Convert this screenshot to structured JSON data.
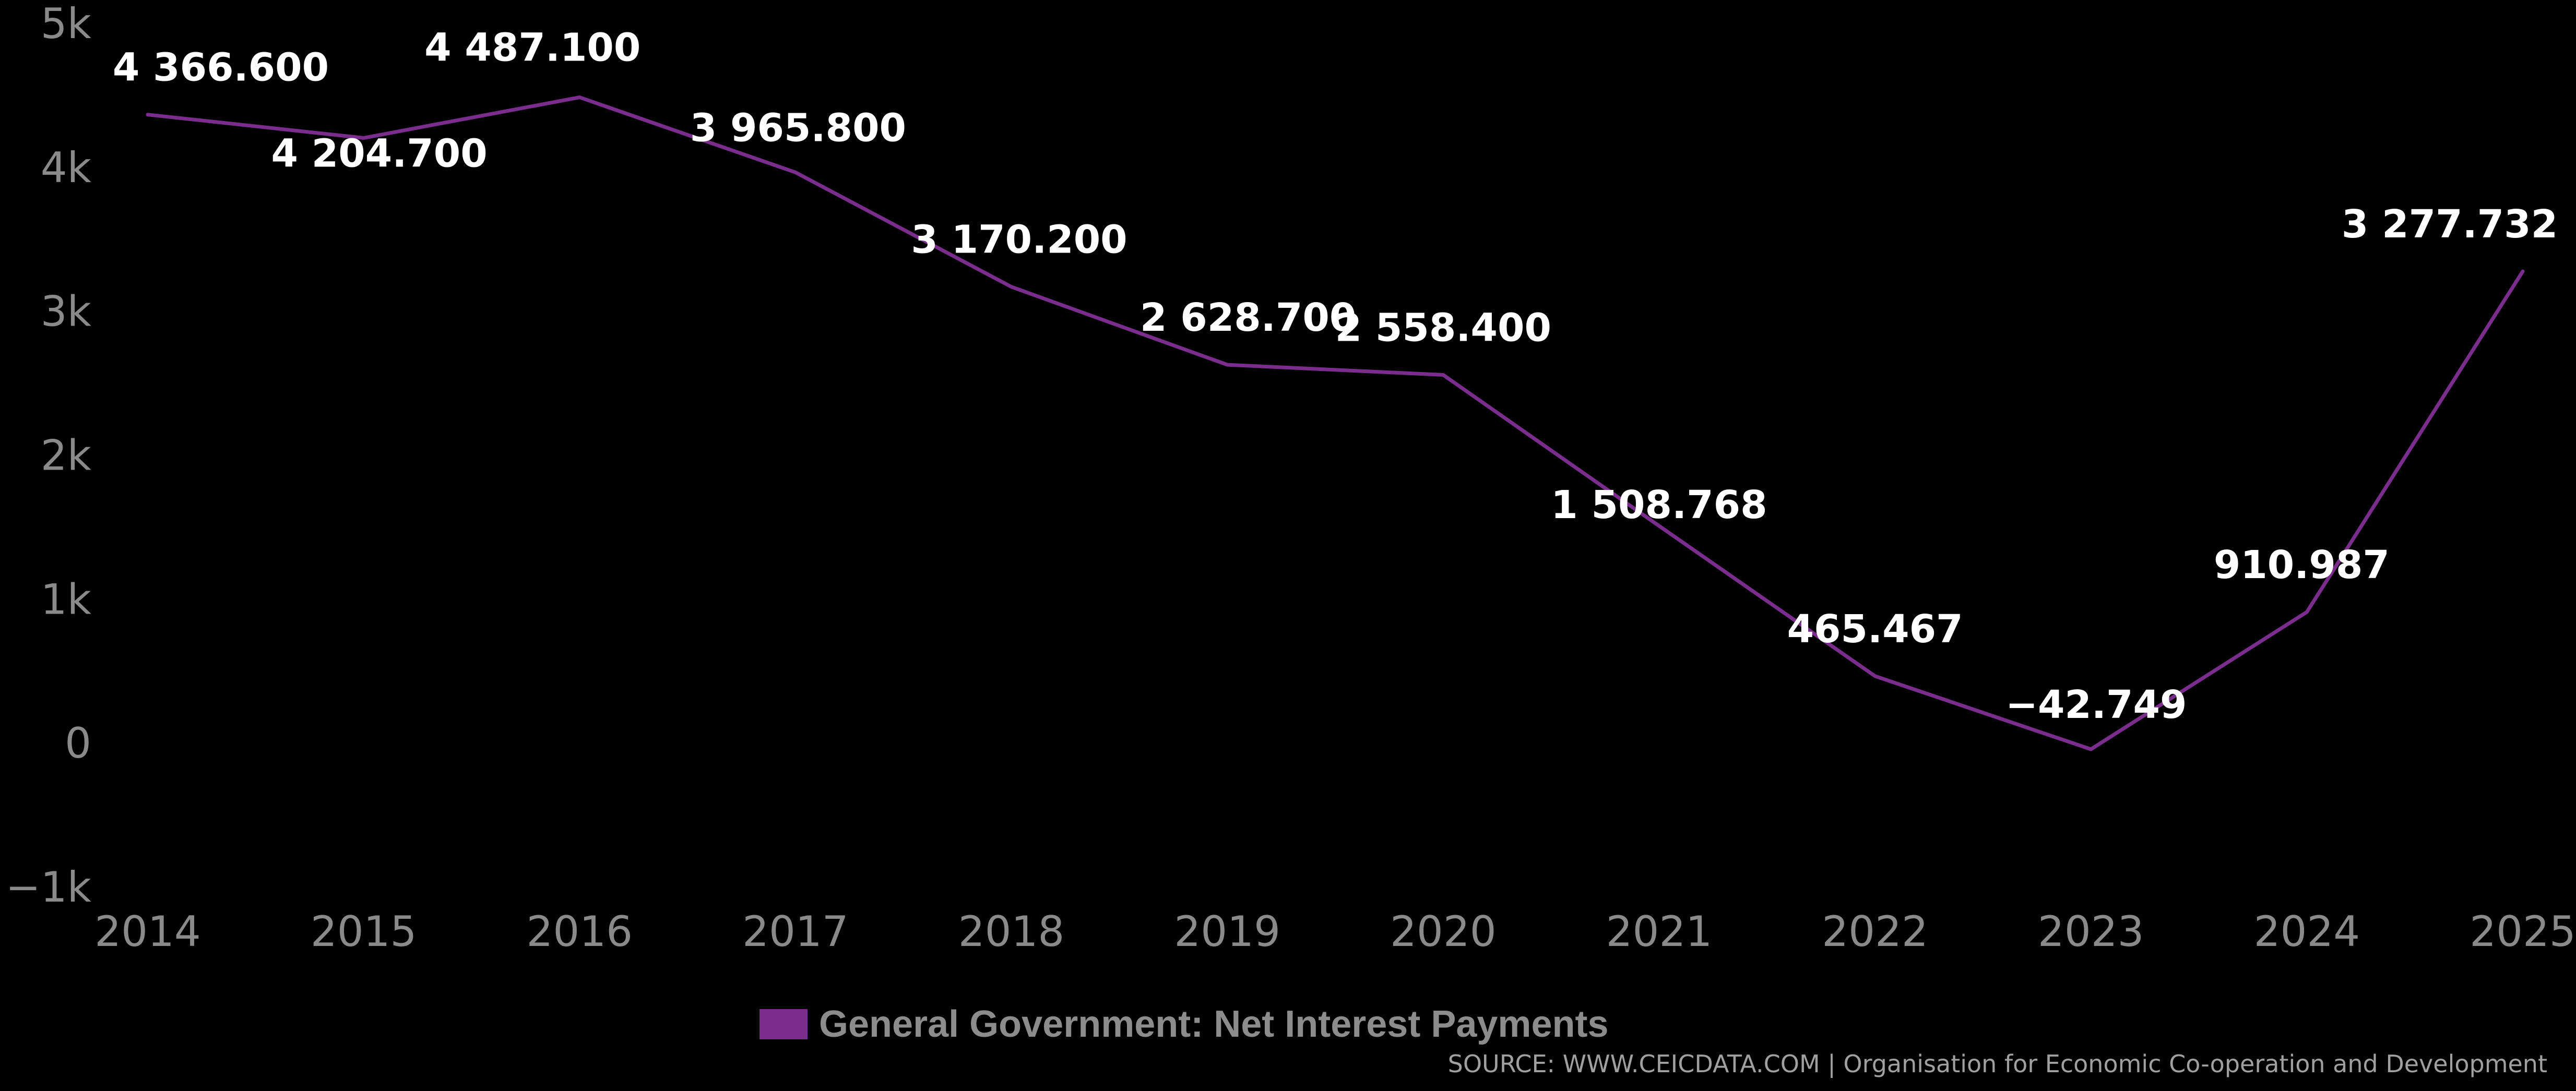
{
  "chart_data": {
    "type": "line",
    "x": [
      "2014",
      "2015",
      "2016",
      "2017",
      "2018",
      "2019",
      "2020",
      "2021",
      "2022",
      "2023",
      "2024",
      "2025"
    ],
    "series": [
      {
        "name": "General Government: Net Interest Payments",
        "values": [
          4366.6,
          4204.7,
          4487.1,
          3965.8,
          3170.2,
          2628.7,
          2558.4,
          1508.768,
          465.467,
          -42.749,
          910.987,
          3277.732
        ],
        "data_labels": [
          "4 366.600",
          "4 204.700",
          "4 487.100",
          "3 965.800",
          "3 170.200",
          "2 628.700",
          "2 558.400",
          "1 508.768",
          "465.467",
          "−42.749",
          "910.987",
          "3 277.732"
        ],
        "color": "#7b2d8e"
      }
    ],
    "y_ticks": [
      {
        "value": 5000,
        "label": "5k"
      },
      {
        "value": 4000,
        "label": "4k"
      },
      {
        "value": 3000,
        "label": "3k"
      },
      {
        "value": 2000,
        "label": "2k"
      },
      {
        "value": 1000,
        "label": "1k"
      },
      {
        "value": 0,
        "label": "0"
      },
      {
        "value": -1000,
        "label": "−1k"
      }
    ],
    "ylim": [
      -1000,
      5000
    ],
    "grid": false,
    "legend_position": "bottom-center"
  },
  "legend": {
    "label": "General Government: Net Interest Payments",
    "color": "#7b2d8e"
  },
  "source": "SOURCE: WWW.CEICDATA.COM | Organisation for Economic Co-operation and Development"
}
